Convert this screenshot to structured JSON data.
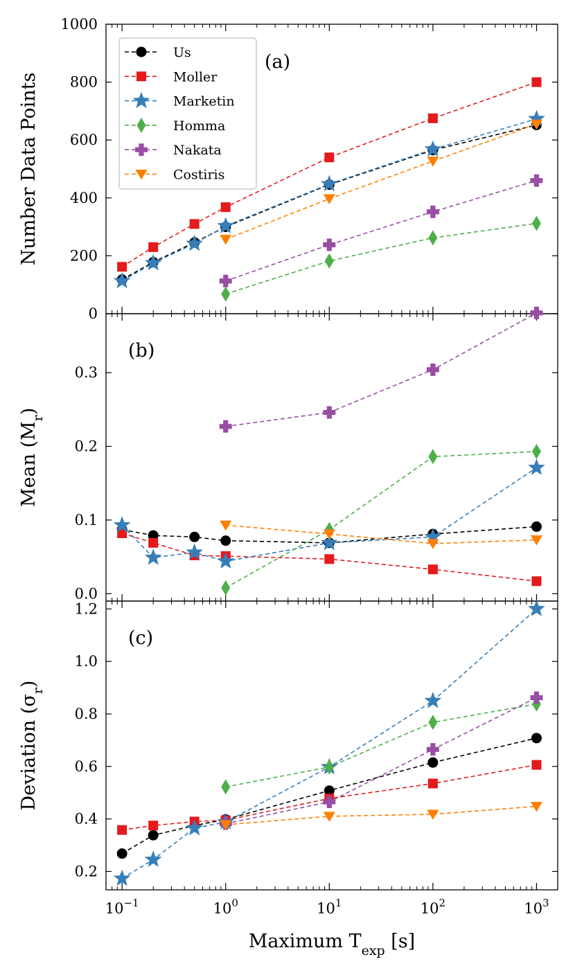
{
  "chart_data": {
    "type": "line",
    "xscale": "log",
    "x_domain": [
      0.07,
      1600
    ],
    "x": [
      0.1,
      0.2,
      0.5,
      1,
      10,
      100,
      1000
    ],
    "xlabel": "Maximum T",
    "xlabel_sub": "exp",
    "xlabel_unit": " [s]",
    "x_ticks": [
      {
        "value": 0.1,
        "base": "10",
        "exp": "−1"
      },
      {
        "value": 1,
        "base": "10",
        "exp": "0"
      },
      {
        "value": 10,
        "base": "10",
        "exp": "1"
      },
      {
        "value": 100,
        "base": "10",
        "exp": "2"
      },
      {
        "value": 1000,
        "base": "10",
        "exp": "3"
      }
    ],
    "legend": {
      "placement": "top-left of panel (a)",
      "entries": [
        "Us",
        "Moller",
        "Marketin",
        "Homma",
        "Nakata",
        "Costiris"
      ]
    },
    "series_style": {
      "Us": {
        "color": "#000000",
        "marker": "circle"
      },
      "Moller": {
        "color": "#e41a1c",
        "marker": "square"
      },
      "Marketin": {
        "color": "#377eb8",
        "marker": "star"
      },
      "Homma": {
        "color": "#4daf4a",
        "marker": "diamond"
      },
      "Nakata": {
        "color": "#984ea3",
        "marker": "plus"
      },
      "Costiris": {
        "color": "#ff7f00",
        "marker": "triangle-down"
      }
    },
    "panels": [
      {
        "label": "(a)",
        "ylabel": "Number Data Points",
        "ylabel_sub": "",
        "ylabel_suffix": "",
        "ylim": [
          0,
          1000
        ],
        "y_ticks": [
          "0",
          "200",
          "400",
          "600",
          "800",
          "1000"
        ],
        "series": [
          {
            "name": "Us",
            "values": [
              118,
              178,
              246,
              300,
              446,
              565,
              652
            ]
          },
          {
            "name": "Moller",
            "values": [
              162,
              230,
              310,
              368,
              540,
              675,
              800
            ]
          },
          {
            "name": "Marketin",
            "values": [
              113,
              175,
              242,
              303,
              448,
              568,
              673
            ]
          },
          {
            "name": "Homma",
            "values": [
              null,
              null,
              null,
              68,
              182,
              262,
              312
            ]
          },
          {
            "name": "Nakata",
            "values": [
              null,
              null,
              null,
              113,
              238,
              352,
              460
            ]
          },
          {
            "name": "Costiris",
            "values": [
              null,
              null,
              null,
              257,
              397,
              527,
              655
            ]
          }
        ]
      },
      {
        "label": "(b)",
        "ylabel": "Mean (M",
        "ylabel_sub": "r",
        "ylabel_suffix": ")",
        "ylim": [
          -0.01,
          0.38
        ],
        "y_ticks": [
          "0.0",
          "0.1",
          "0.2",
          "0.3"
        ],
        "series": [
          {
            "name": "Us",
            "values": [
              0.087,
              0.079,
              0.077,
              0.072,
              0.069,
              0.081,
              0.091
            ]
          },
          {
            "name": "Moller",
            "values": [
              0.082,
              0.069,
              0.052,
              0.051,
              0.047,
              0.033,
              0.017
            ]
          },
          {
            "name": "Marketin",
            "values": [
              0.093,
              0.049,
              0.056,
              0.044,
              0.069,
              0.077,
              0.171
            ]
          },
          {
            "name": "Homma",
            "values": [
              null,
              null,
              null,
              0.008,
              0.087,
              0.186,
              0.193
            ]
          },
          {
            "name": "Nakata",
            "values": [
              null,
              null,
              null,
              0.227,
              0.246,
              0.304,
              0.381
            ]
          },
          {
            "name": "Costiris",
            "values": [
              null,
              null,
              null,
              0.093,
              0.081,
              0.068,
              0.073
            ]
          }
        ]
      },
      {
        "label": "(c)",
        "ylabel": "Deviation (σ",
        "ylabel_sub": "r",
        "ylabel_suffix": ")",
        "ylim": [
          0.13,
          1.23
        ],
        "y_ticks": [
          "0.2",
          "0.4",
          "0.6",
          "0.8",
          "1.0",
          "1.2"
        ],
        "series": [
          {
            "name": "Us",
            "values": [
              0.268,
              0.338,
              0.375,
              0.398,
              0.508,
              0.615,
              0.708
            ]
          },
          {
            "name": "Moller",
            "values": [
              0.358,
              0.375,
              0.39,
              0.395,
              0.478,
              0.535,
              0.606
            ]
          },
          {
            "name": "Marketin",
            "values": [
              0.173,
              0.245,
              0.365,
              0.388,
              0.598,
              0.85,
              1.2
            ]
          },
          {
            "name": "Homma",
            "values": [
              null,
              null,
              null,
              0.522,
              0.598,
              0.768,
              0.838
            ]
          },
          {
            "name": "Nakata",
            "values": [
              null,
              null,
              null,
              0.382,
              0.465,
              0.665,
              0.862
            ]
          },
          {
            "name": "Costiris",
            "values": [
              null,
              null,
              null,
              0.378,
              0.41,
              0.418,
              0.448
            ]
          }
        ]
      }
    ]
  }
}
